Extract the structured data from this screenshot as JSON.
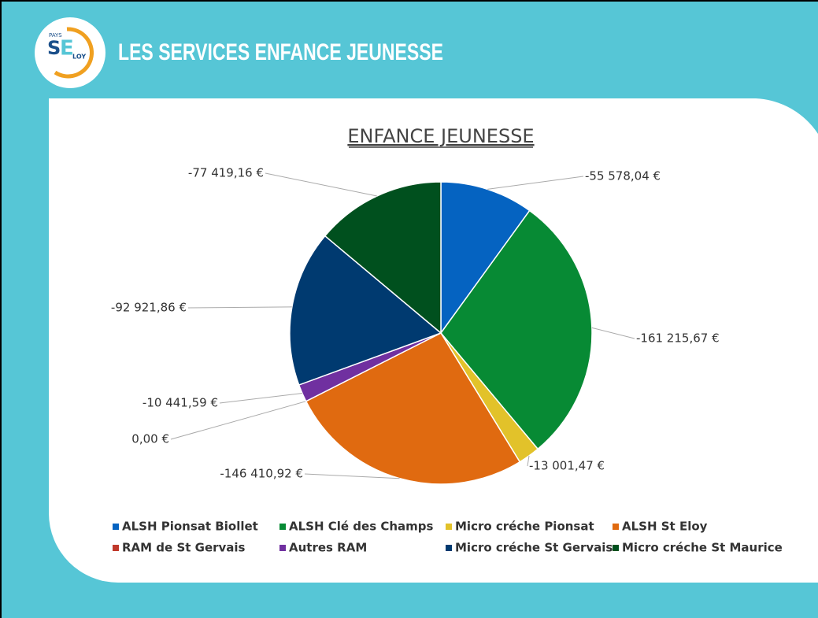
{
  "header": {
    "title": "LES SERVICES ENFANCE JEUNESSE",
    "logo": {
      "top": "PAYS",
      "s": "S",
      "e": "E",
      "loy": "LOY"
    }
  },
  "chart_data": {
    "type": "pie",
    "title": "ENFANCE JEUNESSE",
    "categories": [
      "ALSH Pionsat Biollet",
      "ALSH Clé des Champs",
      "Micro créche Pionsat",
      "ALSH St Eloy",
      "RAM de St Gervais",
      "Autres RAM",
      "Micro créche St Gervais",
      "Micro créche St Maurice"
    ],
    "values": [
      -55578.04,
      -161215.67,
      -13001.47,
      -146410.92,
      0,
      -10441.59,
      -92921.86,
      -77419.16
    ],
    "value_labels": [
      "-55 578,04 €",
      "-161 215,67 €",
      "-13 001,47 €",
      "-146 410,92 €",
      "0,00 €",
      "-10 441,59 €",
      "-92 921,86 €",
      "-77 419,16 €"
    ],
    "colors": [
      "#0563c1",
      "#078a34",
      "#e2c22a",
      "#e06a10",
      "#c0392b",
      "#7030a0",
      "#003a70",
      "#00501e"
    ],
    "legend": "bottom"
  }
}
